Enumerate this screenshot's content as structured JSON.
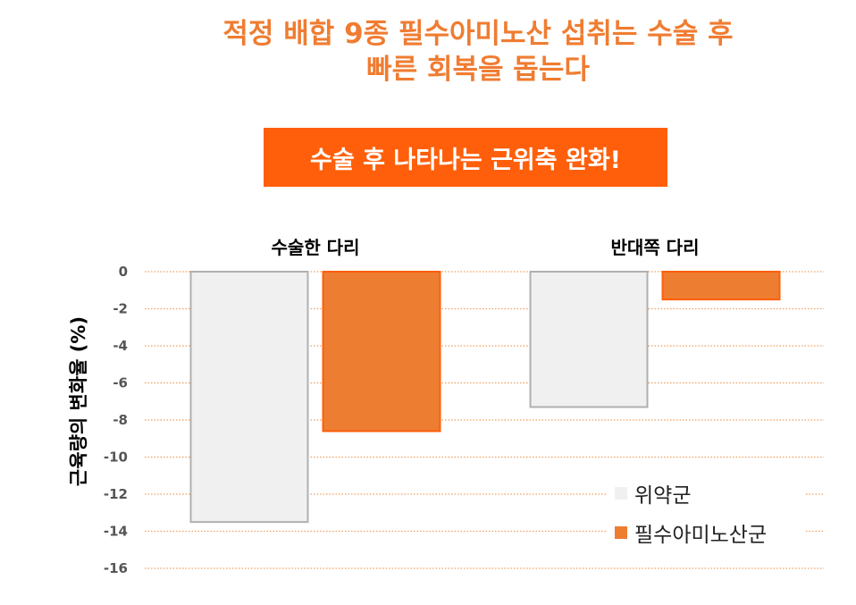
{
  "title": {
    "line1": "적정 배합 9종 필수아미노산 섭취는 수술 후",
    "line2": "빠른 회복을 돕는다"
  },
  "banner": {
    "text": "수술 후 나타나는 근위축 완화!"
  },
  "colors": {
    "title": "#f07c31",
    "banner_bg": "#ff5f0a",
    "placebo": "#f0f0f0",
    "placebo_border": "#b0b0b0",
    "amino": "#ed7d31",
    "amino_border": "#ff5f0a",
    "grid": "#f0a060"
  },
  "chart_data": {
    "type": "bar",
    "categories": [
      "수술한 다리",
      "반대쪽 다리"
    ],
    "series": [
      {
        "name": "위약군",
        "values": [
          -13.5,
          -7.3
        ]
      },
      {
        "name": "필수아미노산군",
        "values": [
          -8.6,
          -1.5
        ]
      }
    ],
    "ylabel": "근육량의 변화율 (%)",
    "ylim": [
      -16,
      0
    ],
    "yticks": [
      "0",
      "-2",
      "-4",
      "-6",
      "-8",
      "-10",
      "-12",
      "-14",
      "-16"
    ],
    "grid": true,
    "legend_position": "bottom-right"
  }
}
